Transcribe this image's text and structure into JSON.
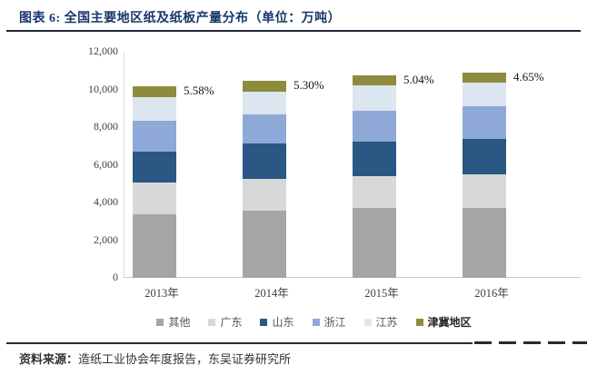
{
  "header": {
    "title": "图表 6: 全国主要地区纸及纸板产量分布（单位：万吨）"
  },
  "chart_data": {
    "type": "bar",
    "stacked": true,
    "title": "全国主要地区纸及纸板产量分布",
    "unit": "万吨",
    "categories": [
      "2013年",
      "2014年",
      "2015年",
      "2016年"
    ],
    "series": [
      {
        "name": "其他",
        "color": "#a5a5a5",
        "values": [
          3390,
          3570,
          3730,
          3730
        ]
      },
      {
        "name": "广东",
        "color": "#d8d8d8",
        "values": [
          1660,
          1680,
          1680,
          1760
        ]
      },
      {
        "name": "山东",
        "color": "#2a5783",
        "values": [
          1660,
          1870,
          1840,
          1870
        ]
      },
      {
        "name": "浙江",
        "color": "#8ea9d8",
        "values": [
          1630,
          1570,
          1600,
          1730
        ]
      },
      {
        "name": "江苏",
        "color": "#dce6f1",
        "values": [
          1250,
          1200,
          1360,
          1280
        ]
      },
      {
        "name": "津冀地区",
        "color": "#8e8b3d",
        "values": [
          565,
          555,
          540,
          505
        ]
      }
    ],
    "bar_top_labels": [
      "5.58%",
      "5.30%",
      "5.04%",
      "4.65%"
    ],
    "ylim": [
      0,
      12000
    ],
    "yticks": [
      0,
      2000,
      4000,
      6000,
      8000,
      10000,
      12000
    ],
    "ytick_labels": [
      "0",
      "2,000",
      "4,000",
      "6,000",
      "8,000",
      "10,000",
      "12,000"
    ],
    "grid": false,
    "legend_position": "bottom"
  },
  "footer": {
    "source_label": "资料来源：",
    "source_text": "造纸工业协会年度报告，东吴证券研究所"
  }
}
